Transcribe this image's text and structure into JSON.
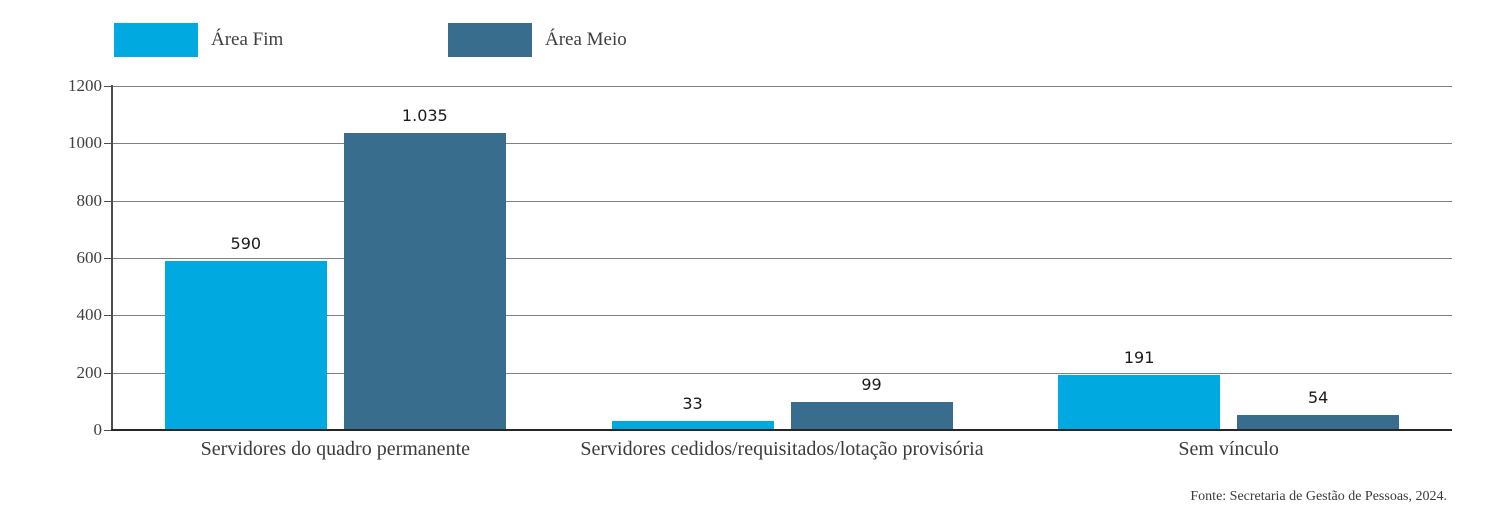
{
  "source_note": "Fonte: Secretaria de Gestão de Pessoas, 2024.",
  "colors": {
    "background": "#ffffff",
    "area_fim": "#00A9E0",
    "area_meio": "#386D8D",
    "gridline": "#808080",
    "axis_line": "#4d4d4d",
    "baseline": "#262626",
    "tick_label": "#3f3f3f",
    "data_label": "#1a1a1a",
    "category_label": "#3b3b3b"
  },
  "legend": {
    "items": [
      {
        "label": "Área Fim",
        "color": "#00A9E0"
      },
      {
        "label": "Área Meio",
        "color": "#386D8D"
      }
    ]
  },
  "chart_data": {
    "type": "bar",
    "title": "",
    "xlabel": "",
    "ylabel": "",
    "categories": [
      "Servidores do quadro permanente",
      "Servidores cedidos/requisitados/lotação provisória",
      "Sem vínculo"
    ],
    "series": [
      {
        "name": "Área Fim",
        "color": "#00A9E0",
        "values": [
          590,
          33,
          191
        ],
        "value_labels": [
          "590",
          "33",
          "191"
        ]
      },
      {
        "name": "Área Meio",
        "color": "#386D8D",
        "values": [
          1035,
          99,
          54
        ],
        "value_labels": [
          "1.035",
          "99",
          "54"
        ]
      }
    ],
    "ylim": [
      0,
      1200
    ],
    "yticks": [
      0,
      200,
      400,
      600,
      800,
      1000,
      1200
    ],
    "grid": true,
    "legend_position": "top-left"
  }
}
